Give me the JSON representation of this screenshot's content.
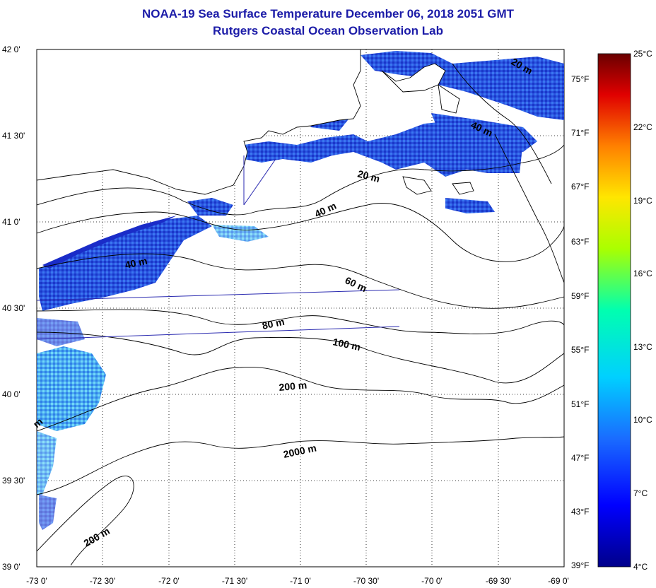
{
  "title": "NOAA-19 Sea Surface Temperature December 06, 2018 2051 GMT",
  "subtitle": "Rutgers Coastal Ocean Observation Lab",
  "lat_labels": [
    "42 0'",
    "41 30'",
    "41 0'",
    "40 30'",
    "40 0'",
    "39 30'",
    "39 0'"
  ],
  "lon_labels": [
    "-73 0'",
    "-72 30'",
    "-72 0'",
    "-71 30'",
    "-71 0'",
    "-70 30'",
    "-70 0'",
    "-69 30'",
    "-69 0'"
  ],
  "contour_labels": [
    "20 m",
    "40 m",
    "20 m",
    "40 m",
    "40 m",
    "60 m",
    "80 m",
    "100 m",
    "200 m",
    "2000 m",
    "200 m",
    "m"
  ],
  "fahrenheit_labels": [
    "75°F",
    "71°F",
    "67°F",
    "63°F",
    "59°F",
    "55°F",
    "51°F",
    "47°F",
    "43°F",
    "39°F"
  ],
  "celsius_labels": [
    "25°C",
    "22°C",
    "19°C",
    "16°C",
    "13°C",
    "10°C",
    "7°C",
    "4°C"
  ],
  "colors": {
    "title": "#1c1ca8",
    "cold": "#1020c0",
    "warm": "#7a0000"
  }
}
